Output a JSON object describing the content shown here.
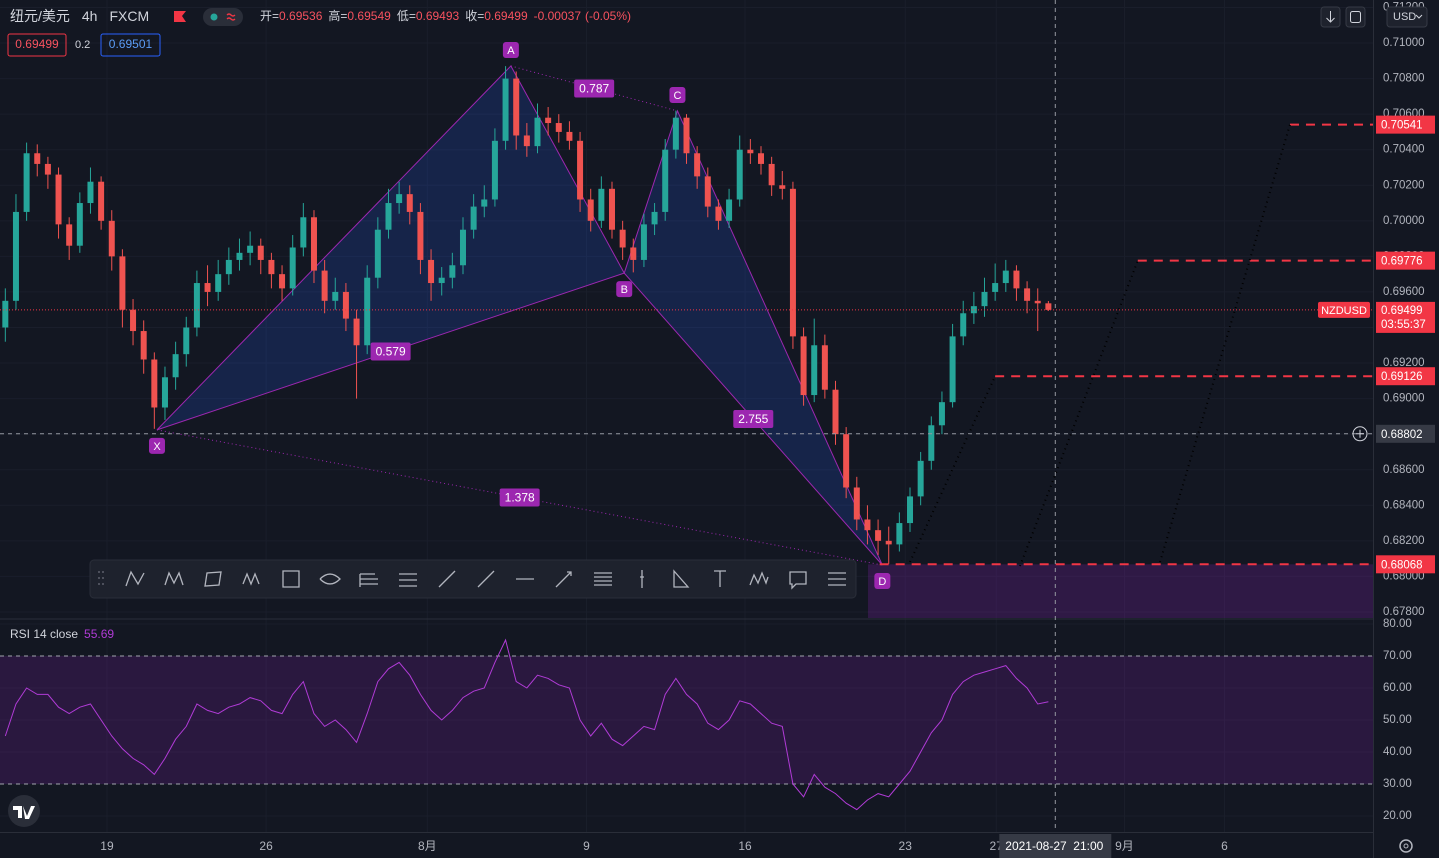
{
  "header": {
    "symbol": "纽元/美元",
    "interval": "4h",
    "exchange": "FXCM",
    "open_label": "开=",
    "high_label": "高=",
    "low_label": "低=",
    "close_label": "收=",
    "change": -0.00037,
    "change_pct": "(-0.05%)",
    "spread": 0.2,
    "ask": 0.69501,
    "currency": "USD"
  },
  "chart_data": [
    {
      "type": "candlestick",
      "series": [
        {
          "name": "NZDUSD",
          "color_up": "#26a69a",
          "color_down": "#ef5350",
          "x": [
            1,
            3,
            5,
            7,
            9,
            11,
            13,
            15,
            17,
            19,
            21,
            23,
            25,
            27,
            29,
            31,
            33,
            35,
            37,
            39,
            41,
            43,
            45,
            47,
            49,
            51,
            53,
            55,
            57,
            59,
            61,
            63,
            65,
            67,
            69,
            71,
            73,
            75,
            77,
            79,
            81,
            83,
            85,
            87,
            89,
            91,
            93,
            95,
            97,
            99,
            101,
            103,
            105,
            107,
            109,
            111,
            113,
            115,
            117,
            119,
            121,
            123,
            125,
            127,
            129,
            131,
            133,
            135,
            137,
            139,
            141,
            143,
            145,
            147,
            149,
            151,
            153,
            155,
            157,
            159,
            161,
            163,
            165,
            167,
            169,
            171,
            173,
            175,
            177,
            179,
            181,
            183,
            185,
            187,
            189,
            191,
            193,
            195,
            197
          ],
          "ohlc": [
            [
              0.694,
              0.6962,
              0.6932,
              0.6955
            ],
            [
              0.6955,
              0.7015,
              0.695,
              0.7005
            ],
            [
              0.7005,
              0.7044,
              0.7,
              0.7038
            ],
            [
              0.7038,
              0.7043,
              0.7025,
              0.7032
            ],
            [
              0.7032,
              0.7036,
              0.7018,
              0.7026
            ],
            [
              0.7026,
              0.703,
              0.699,
              0.6998
            ],
            [
              0.6998,
              0.7002,
              0.6978,
              0.6986
            ],
            [
              0.6986,
              0.7016,
              0.6982,
              0.701
            ],
            [
              0.701,
              0.703,
              0.7004,
              0.7022
            ],
            [
              0.7022,
              0.7025,
              0.6995,
              0.7
            ],
            [
              0.7,
              0.7006,
              0.6972,
              0.698
            ],
            [
              0.698,
              0.6984,
              0.694,
              0.695
            ],
            [
              0.695,
              0.6956,
              0.693,
              0.6938
            ],
            [
              0.6938,
              0.6944,
              0.6914,
              0.6922
            ],
            [
              0.6922,
              0.6926,
              0.6883,
              0.6895
            ],
            [
              0.6895,
              0.6918,
              0.6888,
              0.6912
            ],
            [
              0.6912,
              0.6932,
              0.6905,
              0.6925
            ],
            [
              0.6925,
              0.6946,
              0.6918,
              0.694
            ],
            [
              0.694,
              0.6972,
              0.6935,
              0.6965
            ],
            [
              0.6965,
              0.6975,
              0.6952,
              0.696
            ],
            [
              0.696,
              0.6978,
              0.6955,
              0.697
            ],
            [
              0.697,
              0.6985,
              0.6964,
              0.6978
            ],
            [
              0.6978,
              0.699,
              0.6972,
              0.6982
            ],
            [
              0.6982,
              0.6994,
              0.6975,
              0.6986
            ],
            [
              0.6986,
              0.699,
              0.697,
              0.6978
            ],
            [
              0.6978,
              0.6982,
              0.6962,
              0.697
            ],
            [
              0.697,
              0.6975,
              0.6955,
              0.6962
            ],
            [
              0.6962,
              0.6992,
              0.6958,
              0.6985
            ],
            [
              0.6985,
              0.701,
              0.698,
              0.7002
            ],
            [
              0.7002,
              0.7006,
              0.6965,
              0.6972
            ],
            [
              0.6972,
              0.6978,
              0.6948,
              0.6955
            ],
            [
              0.6955,
              0.6968,
              0.695,
              0.696
            ],
            [
              0.696,
              0.6965,
              0.6938,
              0.6945
            ],
            [
              0.6945,
              0.695,
              0.69,
              0.693
            ],
            [
              0.693,
              0.6975,
              0.6925,
              0.6968
            ],
            [
              0.6968,
              0.7002,
              0.6962,
              0.6995
            ],
            [
              0.6995,
              0.7018,
              0.699,
              0.701
            ],
            [
              0.701,
              0.7022,
              0.7004,
              0.7015
            ],
            [
              0.7015,
              0.702,
              0.6998,
              0.7005
            ],
            [
              0.7005,
              0.701,
              0.697,
              0.6978
            ],
            [
              0.6978,
              0.6984,
              0.6955,
              0.6965
            ],
            [
              0.6965,
              0.6974,
              0.6958,
              0.6968
            ],
            [
              0.6968,
              0.6982,
              0.6962,
              0.6975
            ],
            [
              0.6975,
              0.7002,
              0.697,
              0.6995
            ],
            [
              0.6995,
              0.7015,
              0.699,
              0.7008
            ],
            [
              0.7008,
              0.702,
              0.7002,
              0.7012
            ],
            [
              0.7012,
              0.7052,
              0.7008,
              0.7045
            ],
            [
              0.7045,
              0.7087,
              0.704,
              0.708
            ],
            [
              0.708,
              0.7084,
              0.704,
              0.7048
            ],
            [
              0.7048,
              0.7055,
              0.7036,
              0.7042
            ],
            [
              0.7042,
              0.7066,
              0.7038,
              0.7058
            ],
            [
              0.7058,
              0.7064,
              0.7048,
              0.7055
            ],
            [
              0.7055,
              0.706,
              0.7044,
              0.705
            ],
            [
              0.705,
              0.7056,
              0.704,
              0.7045
            ],
            [
              0.7045,
              0.705,
              0.7005,
              0.7012
            ],
            [
              0.7012,
              0.7018,
              0.6994,
              0.7
            ],
            [
              0.7,
              0.7025,
              0.6996,
              0.7018
            ],
            [
              0.7018,
              0.7022,
              0.699,
              0.6995
            ],
            [
              0.6995,
              0.7,
              0.6978,
              0.6985
            ],
            [
              0.6985,
              0.699,
              0.6971,
              0.6978
            ],
            [
              0.6978,
              0.7004,
              0.6974,
              0.6998
            ],
            [
              0.6998,
              0.701,
              0.6992,
              0.7005
            ],
            [
              0.7005,
              0.7046,
              0.7,
              0.704
            ],
            [
              0.704,
              0.7062,
              0.7035,
              0.7058
            ],
            [
              0.7058,
              0.706,
              0.7032,
              0.7038
            ],
            [
              0.7038,
              0.7042,
              0.7018,
              0.7025
            ],
            [
              0.7025,
              0.703,
              0.7002,
              0.7008
            ],
            [
              0.7008,
              0.7012,
              0.6995,
              0.7
            ],
            [
              0.7,
              0.7018,
              0.6996,
              0.7012
            ],
            [
              0.7012,
              0.7048,
              0.7008,
              0.704
            ],
            [
              0.704,
              0.7046,
              0.7032,
              0.7038
            ],
            [
              0.7038,
              0.7042,
              0.7026,
              0.7032
            ],
            [
              0.7032,
              0.7036,
              0.7014,
              0.702
            ],
            [
              0.702,
              0.7028,
              0.7012,
              0.7018
            ],
            [
              0.7018,
              0.7022,
              0.6928,
              0.6935
            ],
            [
              0.6935,
              0.694,
              0.6896,
              0.6902
            ],
            [
              0.6902,
              0.6945,
              0.6898,
              0.693
            ],
            [
              0.693,
              0.6936,
              0.69,
              0.6905
            ],
            [
              0.6905,
              0.691,
              0.6874,
              0.688
            ],
            [
              0.688,
              0.6884,
              0.6844,
              0.685
            ],
            [
              0.685,
              0.6856,
              0.6826,
              0.6832
            ],
            [
              0.6832,
              0.684,
              0.6818,
              0.6826
            ],
            [
              0.6826,
              0.6832,
              0.6812,
              0.682
            ],
            [
              0.682,
              0.6828,
              0.6807,
              0.6818
            ],
            [
              0.6818,
              0.6836,
              0.6814,
              0.683
            ],
            [
              0.683,
              0.685,
              0.6825,
              0.6845
            ],
            [
              0.6845,
              0.687,
              0.684,
              0.6865
            ],
            [
              0.6865,
              0.689,
              0.686,
              0.6885
            ],
            [
              0.6885,
              0.6904,
              0.688,
              0.6898
            ],
            [
              0.6898,
              0.6942,
              0.6895,
              0.6935
            ],
            [
              0.6935,
              0.6955,
              0.693,
              0.6948
            ],
            [
              0.6948,
              0.696,
              0.6942,
              0.6952
            ],
            [
              0.6952,
              0.6968,
              0.6946,
              0.696
            ],
            [
              0.696,
              0.6976,
              0.6955,
              0.6965
            ],
            [
              0.6965,
              0.6978,
              0.696,
              0.6972
            ],
            [
              0.6972,
              0.6975,
              0.6955,
              0.6962
            ],
            [
              0.6962,
              0.6966,
              0.6948,
              0.6955
            ],
            [
              0.6955,
              0.6962,
              0.6938,
              0.69536
            ],
            [
              0.69536,
              0.69549,
              0.69493,
              0.69499
            ]
          ]
        }
      ],
      "xlim": [
        0,
        258
      ],
      "xticks": [
        {
          "value": 20.1,
          "label": "19"
        },
        {
          "value": 50,
          "label": "26"
        },
        {
          "value": 80.3,
          "label": "8月"
        },
        {
          "value": 110.2,
          "label": "9"
        },
        {
          "value": 140,
          "label": "16"
        },
        {
          "value": 170.1,
          "label": "23"
        },
        {
          "value": 187.2,
          "label": "27"
        },
        {
          "value": 211.3,
          "label": "9月"
        },
        {
          "value": 230.1,
          "label": "6"
        }
      ],
      "ylim": [
        0.67766,
        0.71242
      ],
      "yticks": [
        {
          "value": 0.678,
          "label": "0.67800"
        },
        {
          "value": 0.68,
          "label": "0.68000"
        },
        {
          "value": 0.682,
          "label": "0.68200"
        },
        {
          "value": 0.684,
          "label": "0.68400"
        },
        {
          "value": 0.686,
          "label": "0.68600"
        },
        {
          "value": 0.688,
          "label": "0.68800"
        },
        {
          "value": 0.69,
          "label": "0.69000"
        },
        {
          "value": 0.692,
          "label": "0.69200"
        },
        {
          "value": 0.694,
          "label": "0.69400"
        },
        {
          "value": 0.696,
          "label": "0.69600"
        },
        {
          "value": 0.698,
          "label": "0.69800"
        },
        {
          "value": 0.7,
          "label": "0.70000"
        },
        {
          "value": 0.702,
          "label": "0.70200"
        },
        {
          "value": 0.704,
          "label": "0.70400"
        },
        {
          "value": 0.706,
          "label": "0.70600"
        },
        {
          "value": 0.708,
          "label": "0.70800"
        },
        {
          "value": 0.71,
          "label": "0.71000"
        },
        {
          "value": 0.712,
          "label": "0.71200"
        }
      ],
      "grid": true,
      "price_line": {
        "color": "#f23645",
        "countdown": "03:55:37"
      },
      "levels": [
        {
          "value": 0.70541,
          "x_start": 242.4
        },
        {
          "value": 0.69776,
          "x_start": 213.8
        },
        {
          "value": 0.69126,
          "x_start": 187
        },
        {
          "value": 0.68068,
          "x_start": 165.3,
          "zone_x_start": 163.1
        }
      ],
      "level_color": "#f23645",
      "pattern": {
        "color": "#9c27b0",
        "points": [
          {
            "label": "X",
            "x": 29.5,
            "y": 0.68824
          },
          {
            "label": "A",
            "x": 96,
            "y": 0.70871
          },
          {
            "label": "B",
            "x": 117.3,
            "y": 0.69706
          },
          {
            "label": "C",
            "x": 127.3,
            "y": 0.70618
          },
          {
            "label": "D",
            "x": 165.8,
            "y": 0.68064
          }
        ],
        "ratios": [
          0.787,
          0.579,
          2.755,
          1.378
        ]
      },
      "crosshair": {
        "x": 198.3,
        "y": 0.68802,
        "date": "2021-08-27",
        "time": "21:00"
      }
    },
    {
      "type": "line",
      "title": "RSI 14 close",
      "series": [
        {
          "name": "RSI",
          "color": "#b03bd6",
          "values": [
            45,
            55,
            60,
            58,
            58,
            54,
            52,
            54,
            55,
            50,
            45,
            41,
            38,
            36,
            33,
            38,
            44,
            48,
            55,
            53,
            52,
            54,
            55,
            57,
            56,
            53,
            52,
            58,
            62,
            52,
            48,
            50,
            47,
            43,
            52,
            62,
            66,
            68,
            64,
            58,
            53,
            50,
            53,
            57,
            59,
            60,
            68,
            75,
            62,
            60,
            64,
            63,
            61,
            60,
            50,
            45,
            49,
            44,
            42,
            45,
            48,
            47,
            58,
            63,
            58,
            55,
            49,
            47,
            50,
            56,
            55,
            52,
            49,
            48,
            30,
            26,
            33,
            29,
            27,
            24,
            22,
            25,
            27,
            26,
            30,
            34,
            40,
            46,
            50,
            58,
            62,
            64,
            65,
            66,
            67,
            63,
            60,
            55,
            55.69
          ]
        }
      ],
      "ylim": [
        15,
        81.25
      ],
      "yticks": [
        {
          "value": 20,
          "label": "20.00"
        },
        {
          "value": 30,
          "label": "30.00"
        },
        {
          "value": 40,
          "label": "40.00"
        },
        {
          "value": 50,
          "label": "50.00"
        },
        {
          "value": 60,
          "label": "60.00"
        },
        {
          "value": 70,
          "label": "70.00"
        },
        {
          "value": 80,
          "label": "80.00"
        }
      ],
      "band": [
        30,
        70
      ]
    }
  ]
}
